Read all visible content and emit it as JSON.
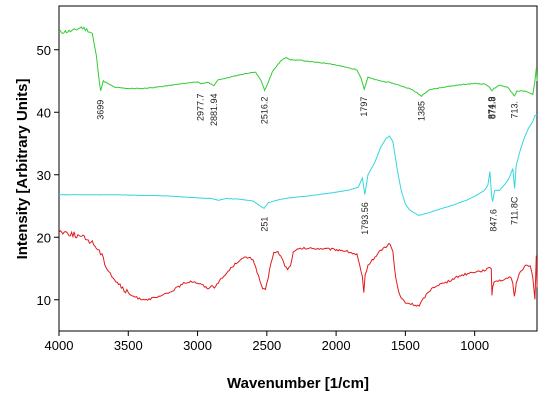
{
  "chart_data": {
    "type": "line",
    "title": "",
    "xlabel": "Wavenumber [1/cm]",
    "ylabel": "Intensity [Arbitrary Units]",
    "xlim": [
      4000,
      550
    ],
    "ylim": [
      5,
      57
    ],
    "x_reversed": true,
    "grid": false,
    "x_ticks": [
      "4000",
      "3500",
      "3000",
      "2500",
      "2000",
      "1500",
      "1000"
    ],
    "y_ticks": [
      "10",
      "20",
      "30",
      "40",
      "50"
    ],
    "series": [
      {
        "color": "#33cc33",
        "points": [
          [
            4000,
            52.8
          ],
          [
            3900,
            53
          ],
          [
            3840,
            53.6
          ],
          [
            3790,
            53.1
          ],
          [
            3760,
            52.6
          ],
          [
            3730,
            49
          ],
          [
            3710,
            45
          ],
          [
            3699,
            43.5
          ],
          [
            3680,
            45
          ],
          [
            3600,
            44
          ],
          [
            3500,
            43.8
          ],
          [
            3400,
            43.8
          ],
          [
            3300,
            44
          ],
          [
            3200,
            44.3
          ],
          [
            3100,
            44.6
          ],
          [
            3000,
            44.9
          ],
          [
            2977,
            44.5
          ],
          [
            2930,
            44.8
          ],
          [
            2881,
            44.3
          ],
          [
            2850,
            45.2
          ],
          [
            2750,
            45.7
          ],
          [
            2650,
            46.2
          ],
          [
            2580,
            46.4
          ],
          [
            2540,
            45
          ],
          [
            2516,
            43.5
          ],
          [
            2490,
            44.8
          ],
          [
            2460,
            46.5
          ],
          [
            2400,
            48.2
          ],
          [
            2360,
            48.8
          ],
          [
            2330,
            48.4
          ],
          [
            2250,
            48.3
          ],
          [
            2150,
            48
          ],
          [
            2050,
            47.8
          ],
          [
            1950,
            47.3
          ],
          [
            1850,
            46.8
          ],
          [
            1820,
            45.5
          ],
          [
            1797,
            43.7
          ],
          [
            1770,
            45.6
          ],
          [
            1700,
            45.1
          ],
          [
            1600,
            44.7
          ],
          [
            1500,
            44
          ],
          [
            1450,
            43.6
          ],
          [
            1385,
            42.6
          ],
          [
            1330,
            43.6
          ],
          [
            1200,
            44.1
          ],
          [
            1100,
            44.4
          ],
          [
            1000,
            44.6
          ],
          [
            920,
            44.5
          ],
          [
            890,
            43.9
          ],
          [
            875,
            43.5
          ],
          [
            860,
            43.8
          ],
          [
            820,
            44.3
          ],
          [
            760,
            44
          ],
          [
            730,
            43.1
          ],
          [
            713,
            42.6
          ],
          [
            695,
            43.4
          ],
          [
            650,
            43.4
          ],
          [
            610,
            43.2
          ],
          [
            580,
            42.8
          ],
          [
            565,
            45
          ],
          [
            555,
            47
          ],
          [
            550,
            45
          ]
        ]
      },
      {
        "color": "#33d6e0",
        "points": [
          [
            4000,
            26.8
          ],
          [
            3800,
            26.8
          ],
          [
            3600,
            26.8
          ],
          [
            3400,
            26.7
          ],
          [
            3200,
            26.6
          ],
          [
            3000,
            26.3
          ],
          [
            2900,
            26.2
          ],
          [
            2850,
            25.9
          ],
          [
            2800,
            26.2
          ],
          [
            2700,
            26.1
          ],
          [
            2600,
            25.8
          ],
          [
            2560,
            25.2
          ],
          [
            2520,
            24.6
          ],
          [
            2490,
            25.5
          ],
          [
            2400,
            26.1
          ],
          [
            2300,
            26.4
          ],
          [
            2200,
            26.6
          ],
          [
            2100,
            26.9
          ],
          [
            2000,
            27.2
          ],
          [
            1900,
            27.6
          ],
          [
            1840,
            28
          ],
          [
            1810,
            29.5
          ],
          [
            1793,
            26.8
          ],
          [
            1770,
            30
          ],
          [
            1720,
            32
          ],
          [
            1680,
            34.3
          ],
          [
            1640,
            35.8
          ],
          [
            1615,
            36.2
          ],
          [
            1590,
            35.3
          ],
          [
            1560,
            31
          ],
          [
            1530,
            27.5
          ],
          [
            1500,
            25.3
          ],
          [
            1470,
            24.4
          ],
          [
            1430,
            23.8
          ],
          [
            1400,
            23.5
          ],
          [
            1350,
            23.8
          ],
          [
            1250,
            24.5
          ],
          [
            1150,
            25.2
          ],
          [
            1050,
            26
          ],
          [
            980,
            26.8
          ],
          [
            930,
            27.5
          ],
          [
            905,
            28.3
          ],
          [
            890,
            30.5
          ],
          [
            877,
            26.5
          ],
          [
            870,
            25.7
          ],
          [
            864,
            26.5
          ],
          [
            855,
            27.5
          ],
          [
            820,
            27.5
          ],
          [
            780,
            28.5
          ],
          [
            750,
            29.5
          ],
          [
            725,
            31
          ],
          [
            712,
            27.8
          ],
          [
            700,
            31.5
          ],
          [
            670,
            34
          ],
          [
            640,
            36
          ],
          [
            610,
            37.5
          ],
          [
            580,
            38.5
          ],
          [
            565,
            39.5
          ],
          [
            550,
            39.5
          ]
        ]
      },
      {
        "color": "#e41a1c",
        "points": [
          [
            4000,
            21
          ],
          [
            3900,
            20.5
          ],
          [
            3800,
            19.7
          ],
          [
            3750,
            19
          ],
          [
            3700,
            17.5
          ],
          [
            3650,
            15
          ],
          [
            3600,
            13.3
          ],
          [
            3550,
            12
          ],
          [
            3500,
            11
          ],
          [
            3450,
            10.4
          ],
          [
            3400,
            10.1
          ],
          [
            3350,
            10.1
          ],
          [
            3300,
            10.3
          ],
          [
            3250,
            10.7
          ],
          [
            3200,
            11.2
          ],
          [
            3150,
            11.9
          ],
          [
            3100,
            12.6
          ],
          [
            3050,
            13
          ],
          [
            3000,
            12.7
          ],
          [
            2960,
            12.3
          ],
          [
            2930,
            11.8
          ],
          [
            2900,
            12.2
          ],
          [
            2880,
            12
          ],
          [
            2850,
            12.8
          ],
          [
            2800,
            14
          ],
          [
            2750,
            15.3
          ],
          [
            2700,
            16.3
          ],
          [
            2650,
            16.8
          ],
          [
            2600,
            16.5
          ],
          [
            2570,
            14.5
          ],
          [
            2550,
            13
          ],
          [
            2530,
            11.8
          ],
          [
            2510,
            11.5
          ],
          [
            2490,
            13.5
          ],
          [
            2470,
            16
          ],
          [
            2450,
            17.5
          ],
          [
            2420,
            17.6
          ],
          [
            2400,
            17
          ],
          [
            2370,
            15.5
          ],
          [
            2350,
            14.8
          ],
          [
            2330,
            15.5
          ],
          [
            2310,
            17.5
          ],
          [
            2280,
            18
          ],
          [
            2250,
            18.2
          ],
          [
            2150,
            18.2
          ],
          [
            2050,
            18.1
          ],
          [
            1950,
            17.9
          ],
          [
            1900,
            17.6
          ],
          [
            1850,
            17.2
          ],
          [
            1830,
            15.5
          ],
          [
            1810,
            13.5
          ],
          [
            1800,
            11
          ],
          [
            1790,
            14
          ],
          [
            1770,
            15.5
          ],
          [
            1720,
            16.8
          ],
          [
            1680,
            17.9
          ],
          [
            1640,
            18.5
          ],
          [
            1610,
            19
          ],
          [
            1590,
            17.5
          ],
          [
            1570,
            13.5
          ],
          [
            1540,
            10.5
          ],
          [
            1500,
            9.5
          ],
          [
            1470,
            9.4
          ],
          [
            1440,
            9.2
          ],
          [
            1400,
            9
          ],
          [
            1370,
            10.2
          ],
          [
            1330,
            11.3
          ],
          [
            1300,
            12
          ],
          [
            1250,
            12.5
          ],
          [
            1200,
            12.8
          ],
          [
            1150,
            13.4
          ],
          [
            1100,
            13.9
          ],
          [
            1050,
            14.2
          ],
          [
            1000,
            14.5
          ],
          [
            950,
            14.6
          ],
          [
            900,
            15
          ],
          [
            880,
            15
          ],
          [
            875,
            10.8
          ],
          [
            870,
            12
          ],
          [
            860,
            13
          ],
          [
            820,
            13.1
          ],
          [
            780,
            13.2
          ],
          [
            740,
            13.6
          ],
          [
            725,
            12.5
          ],
          [
            713,
            10.5
          ],
          [
            700,
            12.5
          ],
          [
            680,
            14.2
          ],
          [
            660,
            14.8
          ],
          [
            630,
            15.5
          ],
          [
            600,
            15.5
          ],
          [
            580,
            13.5
          ],
          [
            565,
            10
          ],
          [
            555,
            17
          ],
          [
            550,
            12
          ]
        ]
      }
    ],
    "annotations": [
      {
        "text": "3699",
        "x": 3699,
        "y": 42
      },
      {
        "text": "2977.7",
        "x": 2977,
        "y": 43
      },
      {
        "text": "2881.94",
        "x": 2881,
        "y": 43
      },
      {
        "text": "2516.2",
        "x": 2516,
        "y": 42.5
      },
      {
        "text": "1797",
        "x": 1797,
        "y": 42.5
      },
      {
        "text": "1385",
        "x": 1385,
        "y": 41.8
      },
      {
        "text": "874.9",
        "x": 877,
        "y": 42.5
      },
      {
        "text": "871.8",
        "x": 870,
        "y": 42.5
      },
      {
        "text": "713.",
        "x": 713,
        "y": 41.8
      },
      {
        "text": "251",
        "x": 2516,
        "y": 23.3
      },
      {
        "text": "1793.56",
        "x": 1793,
        "y": 25.6
      },
      {
        "text": "847.6",
        "x": 865,
        "y": 24.5
      },
      {
        "text": "711.8C",
        "x": 711,
        "y": 26.5
      }
    ]
  }
}
